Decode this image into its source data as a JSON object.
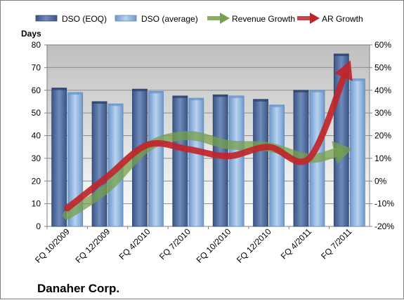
{
  "chart_data": {
    "type": "bar",
    "company": "Danaher Corp.",
    "ylabel": "Days",
    "ylim": [
      0,
      80
    ],
    "y2lim": [
      -20,
      60
    ],
    "yticks": [
      "0",
      "10",
      "20",
      "30",
      "40",
      "50",
      "60",
      "70",
      "80"
    ],
    "y2ticks": [
      "-20%",
      "-10%",
      "0%",
      "10%",
      "20%",
      "30%",
      "40%",
      "50%",
      "60%"
    ],
    "categories": [
      "FQ 10/2009",
      "FQ 12/2009",
      "FQ 4/2010",
      "FQ 7/2010",
      "FQ 10/2010",
      "FQ 12/2010",
      "FQ 4/2011",
      "FQ 7/2011"
    ],
    "series": [
      {
        "name": "DSO (EOQ)",
        "type": "bar",
        "axis": "left",
        "color": "#4f6d9e",
        "values": [
          61,
          55,
          60.5,
          57.5,
          58,
          56,
          60,
          76
        ]
      },
      {
        "name": "DSO (average)",
        "type": "bar",
        "axis": "left",
        "color": "#8db4e2",
        "values": [
          59,
          54,
          59.5,
          56.5,
          57.5,
          53.5,
          60,
          65
        ]
      },
      {
        "name": "Revenue Growth",
        "type": "line",
        "axis": "right",
        "color": "#77a04b",
        "values": [
          -15,
          -3,
          15,
          20,
          16,
          15,
          10,
          14
        ]
      },
      {
        "name": "AR Growth",
        "type": "line",
        "axis": "right",
        "color": "#c0252a",
        "values": [
          -12,
          2,
          16,
          14,
          11,
          15,
          10,
          52
        ]
      }
    ],
    "legend": "top",
    "grid": true
  }
}
